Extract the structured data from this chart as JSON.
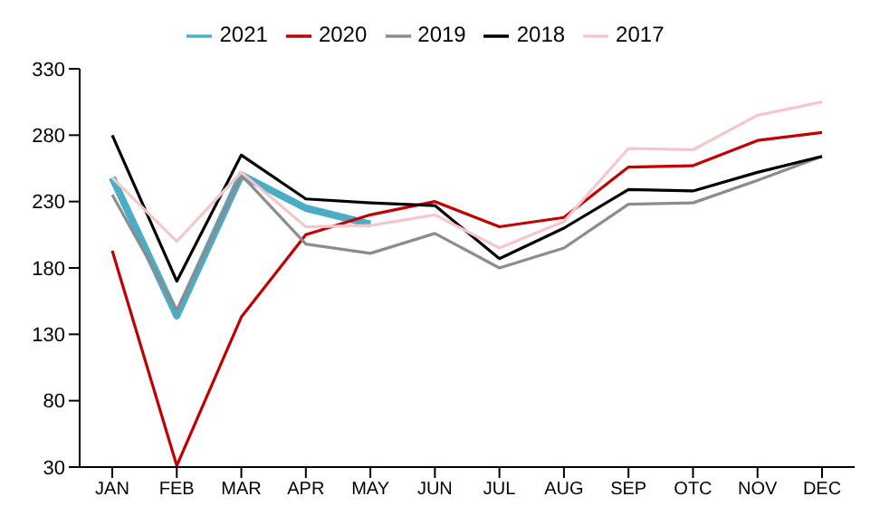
{
  "chart_data": {
    "type": "line",
    "categories": [
      "JAN",
      "FEB",
      "MAR",
      "APR",
      "MAY",
      "JUN",
      "JUL",
      "AUG",
      "SEP",
      "OTC",
      "NOV",
      "DEC"
    ],
    "series": [
      {
        "name": "2021",
        "color": "#4bacc6",
        "values": [
          248,
          144,
          250,
          225,
          213,
          null,
          null,
          null,
          null,
          null,
          null,
          null
        ]
      },
      {
        "name": "2020",
        "color": "#c00000",
        "values": [
          193,
          31,
          143,
          205,
          220,
          230,
          211,
          218,
          256,
          257,
          276,
          282
        ]
      },
      {
        "name": "2019",
        "color": "#8c8c8c",
        "values": [
          235,
          148,
          250,
          198,
          191,
          206,
          180,
          195,
          228,
          229,
          246,
          264
        ]
      },
      {
        "name": "2018",
        "color": "#000000",
        "values": [
          280,
          170,
          265,
          232,
          229,
          227,
          187,
          210,
          239,
          238,
          252,
          264
        ]
      },
      {
        "name": "2017",
        "color": "#f4c7cc",
        "values": [
          248,
          200,
          252,
          211,
          212,
          220,
          195,
          215,
          270,
          269,
          295,
          305
        ]
      }
    ],
    "ylim": [
      30,
      330
    ],
    "yticks": [
      30,
      80,
      130,
      180,
      230,
      280,
      330
    ],
    "grid": false,
    "legend": "top",
    "marker": "none",
    "line_style": "solid"
  }
}
